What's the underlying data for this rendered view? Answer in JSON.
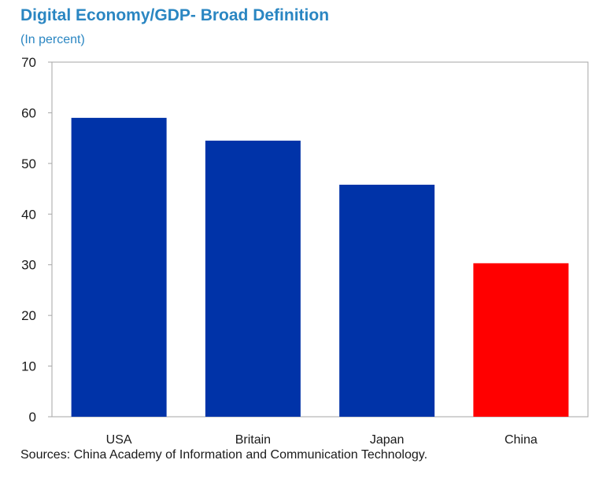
{
  "chart_data": {
    "type": "bar",
    "title": "Digital Economy/GDP- Broad Definition",
    "subtitle": "(In percent)",
    "categories": [
      "USA",
      "Britain",
      "Japan",
      "China"
    ],
    "values": [
      59,
      54.5,
      45.8,
      30.3
    ],
    "colors": [
      "#0033a8",
      "#0033a8",
      "#0033a8",
      "#ff0000"
    ],
    "ylim": [
      0,
      70
    ],
    "yticks": [
      0,
      10,
      20,
      30,
      40,
      50,
      60,
      70
    ],
    "xlabel": "",
    "ylabel": "",
    "grid": false,
    "legend": "none",
    "source": "Sources: China Academy of Information and Communication Technology."
  }
}
